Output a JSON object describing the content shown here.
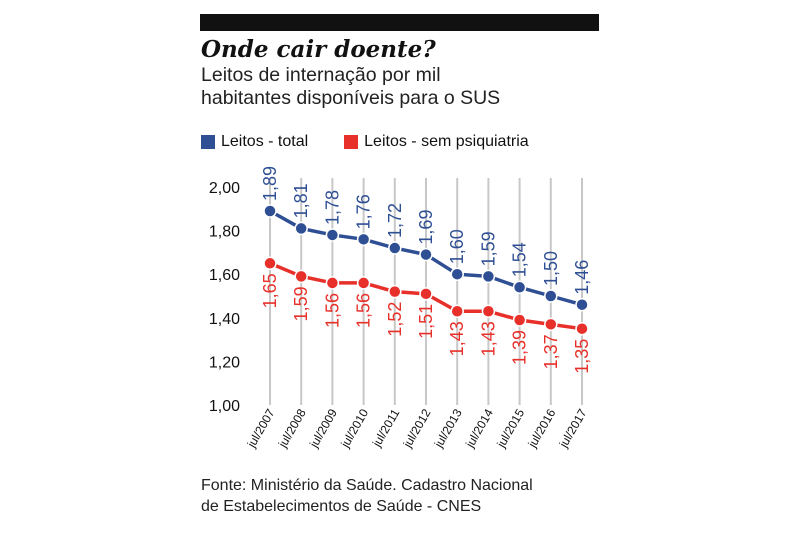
{
  "title": "Onde cair doente?",
  "subtitle_line1": "Leitos de internação por mil",
  "subtitle_line2": "habitantes disponíveis para o SUS",
  "source_line1": "Fonte: Ministério da Saúde. Cadastro Nacional",
  "source_line2": "de Estabelecimentos de Saúde - CNES",
  "chart_data": {
    "type": "line",
    "title": "Onde cair doente?",
    "categories": [
      "jul/2007",
      "jul/2008",
      "jul/2009",
      "jul/2010",
      "jul/2011",
      "jul/2012",
      "jul/2013",
      "jul/2014",
      "jul/2015",
      "jul/2016",
      "jul/2017"
    ],
    "series": [
      {
        "name": "Leitos - total",
        "color": "#2f4f94",
        "values": [
          1.89,
          1.81,
          1.78,
          1.76,
          1.72,
          1.69,
          1.6,
          1.59,
          1.54,
          1.5,
          1.46
        ],
        "labels": [
          "1,89",
          "1,81",
          "1,78",
          "1,76",
          "1,72",
          "1,69",
          "1,60",
          "1,59",
          "1,54",
          "1,50",
          "1,46"
        ]
      },
      {
        "name": "Leitos - sem psiquiatria",
        "color": "#e8302a",
        "values": [
          1.65,
          1.59,
          1.56,
          1.56,
          1.52,
          1.51,
          1.43,
          1.43,
          1.39,
          1.37,
          1.35
        ],
        "labels": [
          "1,65",
          "1,59",
          "1,56",
          "1,56",
          "1,52",
          "1,51",
          "1,43",
          "1,43",
          "1,39",
          "1,37",
          "1,35"
        ]
      }
    ],
    "yticks": [
      "1,00",
      "1,20",
      "1,40",
      "1,60",
      "1,80",
      "2,00"
    ],
    "ylim": [
      1.0,
      2.0
    ],
    "grid": "vertical",
    "legend": "top-left"
  }
}
